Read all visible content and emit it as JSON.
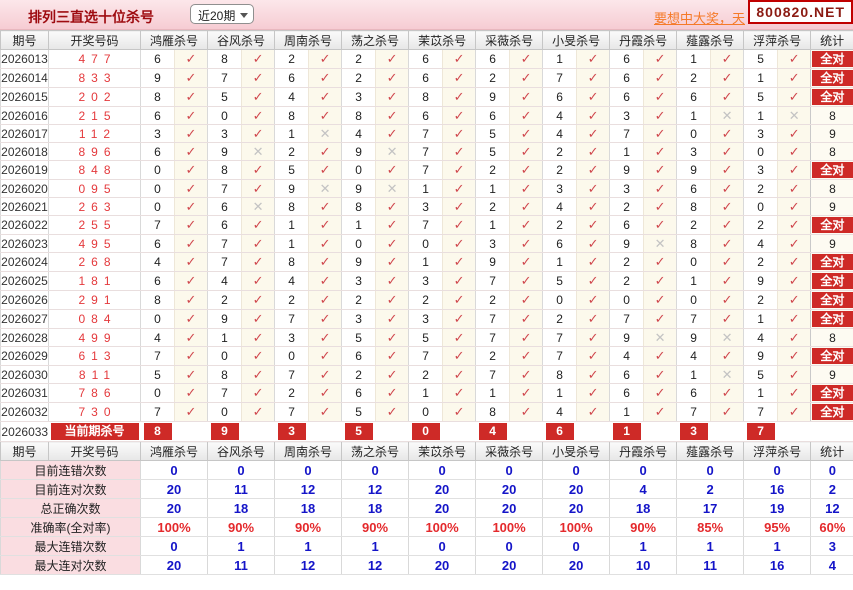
{
  "toolbar": {
    "title": "排列三直选十位杀号",
    "range_selected": "近20期",
    "promo_text": "要想中大奖，天",
    "watermark": "800820.NET"
  },
  "icons": {
    "check": "✓",
    "cross": "✕",
    "dropdown_arrow": "chevron-down"
  },
  "colors": {
    "badge_red": "#ce2a27",
    "draw_number_red": "#e4393c",
    "check_red": "#d0484e",
    "cross_gray": "#c3c3c3",
    "summary_blue": "#1414c8",
    "summary_red": "#e4292c",
    "topbar_pink": "#f6ccd3",
    "label_pink": "#fadde1"
  },
  "table": {
    "col_period": "期号",
    "col_draw": "开奖号码",
    "col_stat": "统计",
    "all_correct_label": "全对",
    "experts": [
      "鸿雁杀号",
      "谷风杀号",
      "周南杀号",
      "荡之杀号",
      "茉苡杀号",
      "采薇杀号",
      "小旻杀号",
      "丹霞杀号",
      "薤露杀号",
      "浮萍杀号"
    ],
    "rows": [
      {
        "period": "2026013",
        "draw": "477",
        "kills": [
          [
            6,
            1
          ],
          [
            8,
            1
          ],
          [
            2,
            1
          ],
          [
            2,
            1
          ],
          [
            6,
            1
          ],
          [
            6,
            1
          ],
          [
            1,
            1
          ],
          [
            6,
            1
          ],
          [
            1,
            1
          ],
          [
            5,
            1
          ]
        ],
        "stat": "全对"
      },
      {
        "period": "2026014",
        "draw": "833",
        "kills": [
          [
            9,
            1
          ],
          [
            7,
            1
          ],
          [
            6,
            1
          ],
          [
            2,
            1
          ],
          [
            6,
            1
          ],
          [
            2,
            1
          ],
          [
            7,
            1
          ],
          [
            6,
            1
          ],
          [
            2,
            1
          ],
          [
            1,
            1
          ]
        ],
        "stat": "全对"
      },
      {
        "period": "2026015",
        "draw": "202",
        "kills": [
          [
            8,
            1
          ],
          [
            5,
            1
          ],
          [
            4,
            1
          ],
          [
            3,
            1
          ],
          [
            8,
            1
          ],
          [
            9,
            1
          ],
          [
            6,
            1
          ],
          [
            6,
            1
          ],
          [
            6,
            1
          ],
          [
            5,
            1
          ]
        ],
        "stat": "全对"
      },
      {
        "period": "2026016",
        "draw": "215",
        "kills": [
          [
            6,
            1
          ],
          [
            0,
            1
          ],
          [
            8,
            1
          ],
          [
            8,
            1
          ],
          [
            6,
            1
          ],
          [
            6,
            1
          ],
          [
            4,
            1
          ],
          [
            3,
            1
          ],
          [
            1,
            0
          ],
          [
            1,
            0
          ]
        ],
        "stat": "8"
      },
      {
        "period": "2026017",
        "draw": "112",
        "kills": [
          [
            3,
            1
          ],
          [
            3,
            1
          ],
          [
            1,
            0
          ],
          [
            4,
            1
          ],
          [
            7,
            1
          ],
          [
            5,
            1
          ],
          [
            4,
            1
          ],
          [
            7,
            1
          ],
          [
            0,
            1
          ],
          [
            3,
            1
          ]
        ],
        "stat": "9"
      },
      {
        "period": "2026018",
        "draw": "896",
        "kills": [
          [
            6,
            1
          ],
          [
            9,
            0
          ],
          [
            2,
            1
          ],
          [
            9,
            0
          ],
          [
            7,
            1
          ],
          [
            5,
            1
          ],
          [
            2,
            1
          ],
          [
            1,
            1
          ],
          [
            3,
            1
          ],
          [
            0,
            1
          ]
        ],
        "stat": "8"
      },
      {
        "period": "2026019",
        "draw": "848",
        "kills": [
          [
            0,
            1
          ],
          [
            8,
            1
          ],
          [
            5,
            1
          ],
          [
            0,
            1
          ],
          [
            7,
            1
          ],
          [
            2,
            1
          ],
          [
            2,
            1
          ],
          [
            9,
            1
          ],
          [
            9,
            1
          ],
          [
            3,
            1
          ]
        ],
        "stat": "全对"
      },
      {
        "period": "2026020",
        "draw": "095",
        "kills": [
          [
            0,
            1
          ],
          [
            7,
            1
          ],
          [
            9,
            0
          ],
          [
            9,
            0
          ],
          [
            1,
            1
          ],
          [
            1,
            1
          ],
          [
            3,
            1
          ],
          [
            3,
            1
          ],
          [
            6,
            1
          ],
          [
            2,
            1
          ]
        ],
        "stat": "8"
      },
      {
        "period": "2026021",
        "draw": "263",
        "kills": [
          [
            0,
            1
          ],
          [
            6,
            0
          ],
          [
            8,
            1
          ],
          [
            8,
            1
          ],
          [
            3,
            1
          ],
          [
            2,
            1
          ],
          [
            4,
            1
          ],
          [
            2,
            1
          ],
          [
            8,
            1
          ],
          [
            0,
            1
          ]
        ],
        "stat": "9"
      },
      {
        "period": "2026022",
        "draw": "255",
        "kills": [
          [
            7,
            1
          ],
          [
            6,
            1
          ],
          [
            1,
            1
          ],
          [
            1,
            1
          ],
          [
            7,
            1
          ],
          [
            1,
            1
          ],
          [
            2,
            1
          ],
          [
            6,
            1
          ],
          [
            2,
            1
          ],
          [
            2,
            1
          ]
        ],
        "stat": "全对"
      },
      {
        "period": "2026023",
        "draw": "495",
        "kills": [
          [
            6,
            1
          ],
          [
            7,
            1
          ],
          [
            1,
            1
          ],
          [
            0,
            1
          ],
          [
            0,
            1
          ],
          [
            3,
            1
          ],
          [
            6,
            1
          ],
          [
            9,
            0
          ],
          [
            8,
            1
          ],
          [
            4,
            1
          ]
        ],
        "stat": "9"
      },
      {
        "period": "2026024",
        "draw": "268",
        "kills": [
          [
            4,
            1
          ],
          [
            7,
            1
          ],
          [
            8,
            1
          ],
          [
            9,
            1
          ],
          [
            1,
            1
          ],
          [
            9,
            1
          ],
          [
            1,
            1
          ],
          [
            2,
            1
          ],
          [
            0,
            1
          ],
          [
            2,
            1
          ]
        ],
        "stat": "全对"
      },
      {
        "period": "2026025",
        "draw": "181",
        "kills": [
          [
            6,
            1
          ],
          [
            4,
            1
          ],
          [
            4,
            1
          ],
          [
            3,
            1
          ],
          [
            3,
            1
          ],
          [
            7,
            1
          ],
          [
            5,
            1
          ],
          [
            2,
            1
          ],
          [
            1,
            1
          ],
          [
            9,
            1
          ]
        ],
        "stat": "全对"
      },
      {
        "period": "2026026",
        "draw": "291",
        "kills": [
          [
            8,
            1
          ],
          [
            2,
            1
          ],
          [
            2,
            1
          ],
          [
            2,
            1
          ],
          [
            2,
            1
          ],
          [
            2,
            1
          ],
          [
            0,
            1
          ],
          [
            0,
            1
          ],
          [
            0,
            1
          ],
          [
            2,
            1
          ]
        ],
        "stat": "全对"
      },
      {
        "period": "2026027",
        "draw": "084",
        "kills": [
          [
            0,
            1
          ],
          [
            9,
            1
          ],
          [
            7,
            1
          ],
          [
            3,
            1
          ],
          [
            3,
            1
          ],
          [
            7,
            1
          ],
          [
            2,
            1
          ],
          [
            7,
            1
          ],
          [
            7,
            1
          ],
          [
            1,
            1
          ]
        ],
        "stat": "全对"
      },
      {
        "period": "2026028",
        "draw": "499",
        "kills": [
          [
            4,
            1
          ],
          [
            1,
            1
          ],
          [
            3,
            1
          ],
          [
            5,
            1
          ],
          [
            5,
            1
          ],
          [
            7,
            1
          ],
          [
            7,
            1
          ],
          [
            9,
            0
          ],
          [
            9,
            0
          ],
          [
            4,
            1
          ]
        ],
        "stat": "8"
      },
      {
        "period": "2026029",
        "draw": "613",
        "kills": [
          [
            7,
            1
          ],
          [
            0,
            1
          ],
          [
            0,
            1
          ],
          [
            6,
            1
          ],
          [
            7,
            1
          ],
          [
            2,
            1
          ],
          [
            7,
            1
          ],
          [
            4,
            1
          ],
          [
            4,
            1
          ],
          [
            9,
            1
          ]
        ],
        "stat": "全对"
      },
      {
        "period": "2026030",
        "draw": "811",
        "kills": [
          [
            5,
            1
          ],
          [
            8,
            1
          ],
          [
            7,
            1
          ],
          [
            2,
            1
          ],
          [
            2,
            1
          ],
          [
            7,
            1
          ],
          [
            8,
            1
          ],
          [
            6,
            1
          ],
          [
            1,
            0
          ],
          [
            5,
            1
          ]
        ],
        "stat": "9"
      },
      {
        "period": "2026031",
        "draw": "786",
        "kills": [
          [
            0,
            1
          ],
          [
            7,
            1
          ],
          [
            2,
            1
          ],
          [
            6,
            1
          ],
          [
            1,
            1
          ],
          [
            1,
            1
          ],
          [
            1,
            1
          ],
          [
            6,
            1
          ],
          [
            6,
            1
          ],
          [
            1,
            1
          ]
        ],
        "stat": "全对"
      },
      {
        "period": "2026032",
        "draw": "730",
        "kills": [
          [
            7,
            1
          ],
          [
            0,
            1
          ],
          [
            7,
            1
          ],
          [
            5,
            1
          ],
          [
            0,
            1
          ],
          [
            8,
            1
          ],
          [
            4,
            1
          ],
          [
            1,
            1
          ],
          [
            7,
            1
          ],
          [
            7,
            1
          ]
        ],
        "stat": "全对"
      }
    ],
    "current": {
      "period": "2026033",
      "label": "当前期杀号",
      "kills": [
        8,
        9,
        3,
        5,
        0,
        4,
        6,
        1,
        3,
        7
      ],
      "stat": ""
    },
    "summary": [
      {
        "label": "目前连错次数",
        "values": [
          "0",
          "0",
          "0",
          "0",
          "0",
          "0",
          "0",
          "0",
          "0",
          "0"
        ],
        "stat": "0",
        "style": "blue"
      },
      {
        "label": "目前连对次数",
        "values": [
          "20",
          "11",
          "12",
          "12",
          "20",
          "20",
          "20",
          "4",
          "2",
          "16"
        ],
        "stat": "2",
        "style": "blue"
      },
      {
        "label": "总正确次数",
        "values": [
          "20",
          "18",
          "18",
          "18",
          "20",
          "20",
          "20",
          "18",
          "17",
          "19"
        ],
        "stat": "12",
        "style": "blue"
      },
      {
        "label": "准确率(全对率)",
        "values": [
          "100%",
          "90%",
          "90%",
          "90%",
          "100%",
          "100%",
          "100%",
          "90%",
          "85%",
          "95%"
        ],
        "stat": "60%",
        "style": "red"
      },
      {
        "label": "最大连错次数",
        "values": [
          "0",
          "1",
          "1",
          "1",
          "0",
          "0",
          "0",
          "1",
          "1",
          "1"
        ],
        "stat": "3",
        "style": "blue"
      },
      {
        "label": "最大连对次数",
        "values": [
          "20",
          "11",
          "12",
          "12",
          "20",
          "20",
          "20",
          "10",
          "11",
          "16"
        ],
        "stat": "4",
        "style": "blue"
      }
    ]
  }
}
